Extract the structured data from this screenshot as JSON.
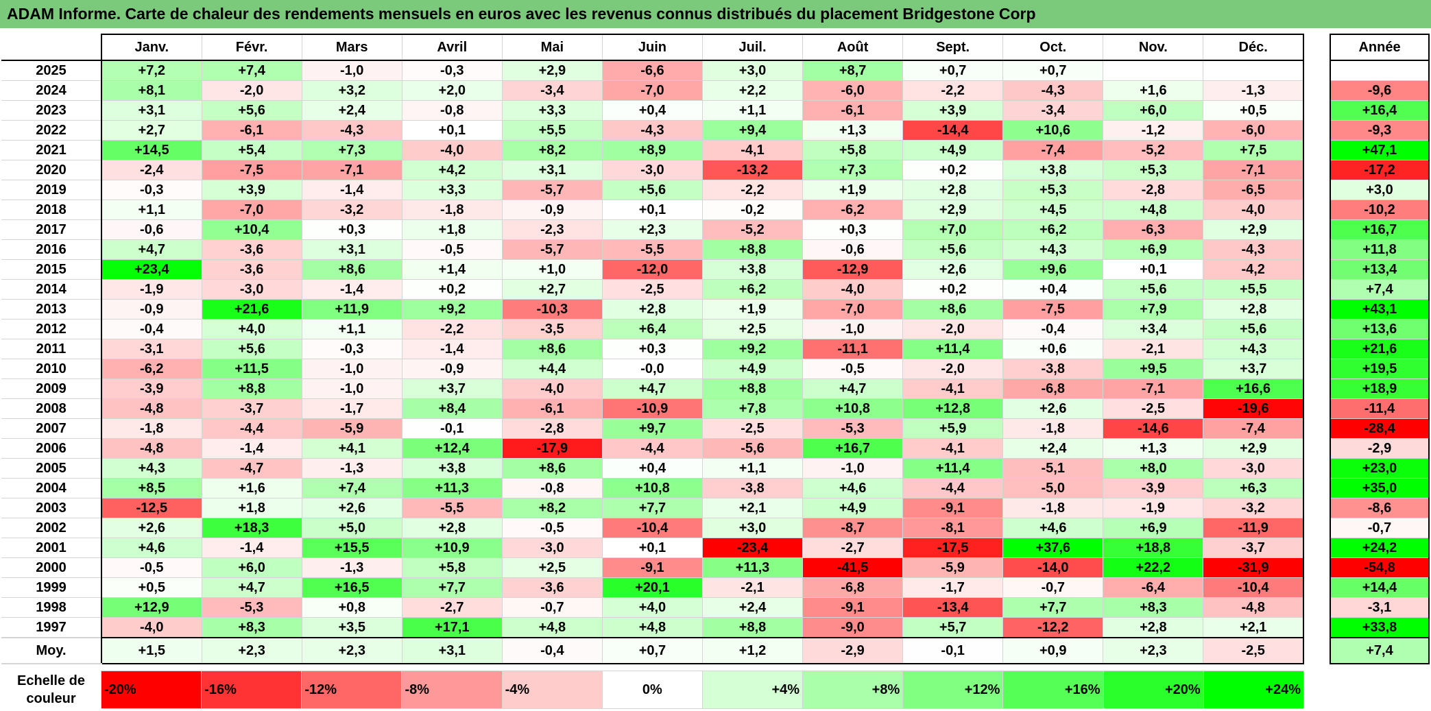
{
  "title": "ADAM Informe. Carte de chaleur des rendements mensuels en euros avec les revenus connus distribués du placement Bridgestone Corp",
  "chart_data": {
    "type": "heatmap",
    "title": "ADAM Informe. Carte de chaleur des rendements mensuels en euros avec les revenus connus distribués du placement Bridgestone Corp",
    "months": [
      "Janv.",
      "Févr.",
      "Mars",
      "Avril",
      "Mai",
      "Juin",
      "Juil.",
      "Août",
      "Sept.",
      "Oct.",
      "Nov.",
      "Déc."
    ],
    "year_header": "Année",
    "rows": [
      {
        "year": "2025",
        "values": [
          "+7,2",
          "+7,4",
          "-1,0",
          "-0,3",
          "+2,9",
          "-6,6",
          "+3,0",
          "+8,7",
          "+0,7",
          "+0,7",
          "",
          ""
        ],
        "annual": ""
      },
      {
        "year": "2024",
        "values": [
          "+8,1",
          "-2,0",
          "+3,2",
          "+2,0",
          "-3,4",
          "-7,0",
          "+2,2",
          "-6,0",
          "-2,2",
          "-4,3",
          "+1,6",
          "-1,3"
        ],
        "annual": "-9,6"
      },
      {
        "year": "2023",
        "values": [
          "+3,1",
          "+5,6",
          "+2,4",
          "-0,8",
          "+3,3",
          "+0,4",
          "+1,1",
          "-6,1",
          "+3,9",
          "-3,4",
          "+6,0",
          "+0,5"
        ],
        "annual": "+16,4"
      },
      {
        "year": "2022",
        "values": [
          "+2,7",
          "-6,1",
          "-4,3",
          "+0,1",
          "+5,5",
          "-4,3",
          "+9,4",
          "+1,3",
          "-14,4",
          "+10,6",
          "-1,2",
          "-6,0"
        ],
        "annual": "-9,3"
      },
      {
        "year": "2021",
        "values": [
          "+14,5",
          "+5,4",
          "+7,3",
          "-4,0",
          "+8,2",
          "+8,9",
          "-4,1",
          "+5,8",
          "+4,9",
          "-7,4",
          "-5,2",
          "+7,5"
        ],
        "annual": "+47,1"
      },
      {
        "year": "2020",
        "values": [
          "-2,4",
          "-7,5",
          "-7,1",
          "+4,2",
          "+3,1",
          "-3,0",
          "-13,2",
          "+7,3",
          "+0,2",
          "+3,8",
          "+5,3",
          "-7,1"
        ],
        "annual": "-17,2"
      },
      {
        "year": "2019",
        "values": [
          "-0,3",
          "+3,9",
          "-1,4",
          "+3,3",
          "-5,7",
          "+5,6",
          "-2,2",
          "+1,9",
          "+2,8",
          "+5,3",
          "-2,8",
          "-6,5"
        ],
        "annual": "+3,0"
      },
      {
        "year": "2018",
        "values": [
          "+1,1",
          "-7,0",
          "-3,2",
          "-1,8",
          "-0,9",
          "+0,1",
          "-0,2",
          "-6,2",
          "+2,9",
          "+4,5",
          "+4,8",
          "-4,0"
        ],
        "annual": "-10,2"
      },
      {
        "year": "2017",
        "values": [
          "-0,6",
          "+10,4",
          "+0,3",
          "+1,8",
          "-2,3",
          "+2,3",
          "-5,2",
          "+0,3",
          "+7,0",
          "+6,2",
          "-6,3",
          "+2,9"
        ],
        "annual": "+16,7"
      },
      {
        "year": "2016",
        "values": [
          "+4,7",
          "-3,6",
          "+3,1",
          "-0,5",
          "-5,7",
          "-5,5",
          "+8,8",
          "-0,6",
          "+5,6",
          "+4,3",
          "+6,9",
          "-4,3"
        ],
        "annual": "+11,8"
      },
      {
        "year": "2015",
        "values": [
          "+23,4",
          "-3,6",
          "+8,6",
          "+1,4",
          "+1,0",
          "-12,0",
          "+3,8",
          "-12,9",
          "+2,6",
          "+9,6",
          "+0,1",
          "-4,2"
        ],
        "annual": "+13,4"
      },
      {
        "year": "2014",
        "values": [
          "-1,9",
          "-3,0",
          "-1,4",
          "+0,2",
          "+2,7",
          "-2,5",
          "+6,2",
          "-4,0",
          "+0,2",
          "+0,4",
          "+5,6",
          "+5,5"
        ],
        "annual": "+7,4"
      },
      {
        "year": "2013",
        "values": [
          "-0,9",
          "+21,6",
          "+11,9",
          "+9,2",
          "-10,3",
          "+2,8",
          "+1,9",
          "-7,0",
          "+8,6",
          "-7,5",
          "+7,9",
          "+2,8"
        ],
        "annual": "+43,1"
      },
      {
        "year": "2012",
        "values": [
          "-0,4",
          "+4,0",
          "+1,1",
          "-2,2",
          "-3,5",
          "+6,4",
          "+2,5",
          "-1,0",
          "-2,0",
          "-0,4",
          "+3,4",
          "+5,6"
        ],
        "annual": "+13,6"
      },
      {
        "year": "2011",
        "values": [
          "-3,1",
          "+5,6",
          "-0,3",
          "-1,4",
          "+8,6",
          "+0,3",
          "+9,2",
          "-11,1",
          "+11,4",
          "+0,6",
          "-2,1",
          "+4,3"
        ],
        "annual": "+21,6"
      },
      {
        "year": "2010",
        "values": [
          "-6,2",
          "+11,5",
          "-1,0",
          "-0,9",
          "+4,4",
          "-0,0",
          "+4,9",
          "-0,5",
          "-2,0",
          "-3,8",
          "+9,5",
          "+3,7"
        ],
        "annual": "+19,5"
      },
      {
        "year": "2009",
        "values": [
          "-3,9",
          "+8,8",
          "-1,0",
          "+3,7",
          "-4,0",
          "+4,7",
          "+8,8",
          "+4,7",
          "-4,1",
          "-6,8",
          "-7,1",
          "+16,6"
        ],
        "annual": "+18,9"
      },
      {
        "year": "2008",
        "values": [
          "-4,8",
          "-3,7",
          "-1,7",
          "+8,4",
          "-6,1",
          "-10,9",
          "+7,8",
          "+10,8",
          "+12,8",
          "+2,6",
          "-2,5",
          "-19,6"
        ],
        "annual": "-11,4"
      },
      {
        "year": "2007",
        "values": [
          "-1,8",
          "-4,4",
          "-5,9",
          "-0,1",
          "-2,8",
          "+9,7",
          "-2,5",
          "-5,3",
          "+5,9",
          "-1,8",
          "-14,6",
          "-7,4"
        ],
        "annual": "-28,4"
      },
      {
        "year": "2006",
        "values": [
          "-4,8",
          "-1,4",
          "+4,1",
          "+12,4",
          "-17,9",
          "-4,4",
          "-5,6",
          "+16,7",
          "-4,1",
          "+2,4",
          "+1,3",
          "+2,9"
        ],
        "annual": "-2,9"
      },
      {
        "year": "2005",
        "values": [
          "+4,3",
          "-4,7",
          "-1,3",
          "+3,8",
          "+8,6",
          "+0,4",
          "+1,1",
          "-1,0",
          "+11,4",
          "-5,1",
          "+8,0",
          "-3,0"
        ],
        "annual": "+23,0"
      },
      {
        "year": "2004",
        "values": [
          "+8,5",
          "+1,6",
          "+7,4",
          "+11,3",
          "-0,8",
          "+10,8",
          "-3,8",
          "+4,6",
          "-4,4",
          "-5,0",
          "-3,9",
          "+6,3"
        ],
        "annual": "+35,0"
      },
      {
        "year": "2003",
        "values": [
          "-12,5",
          "+1,8",
          "+2,6",
          "-5,5",
          "+8,2",
          "+7,7",
          "+2,1",
          "+4,9",
          "-9,1",
          "-1,8",
          "-1,9",
          "-3,2"
        ],
        "annual": "-8,6"
      },
      {
        "year": "2002",
        "values": [
          "+2,6",
          "+18,3",
          "+5,0",
          "+2,8",
          "-0,5",
          "-10,4",
          "+3,0",
          "-8,7",
          "-8,1",
          "+4,6",
          "+6,9",
          "-11,9"
        ],
        "annual": "-0,7"
      },
      {
        "year": "2001",
        "values": [
          "+4,6",
          "-1,4",
          "+15,5",
          "+10,9",
          "-3,0",
          "+0,1",
          "-23,4",
          "-2,7",
          "-17,5",
          "+37,6",
          "+18,8",
          "-3,7"
        ],
        "annual": "+24,2"
      },
      {
        "year": "2000",
        "values": [
          "-0,5",
          "+6,0",
          "-1,3",
          "+5,8",
          "+2,5",
          "-9,1",
          "+11,3",
          "-41,5",
          "-5,9",
          "-14,0",
          "+22,2",
          "-31,9"
        ],
        "annual": "-54,8"
      },
      {
        "year": "1999",
        "values": [
          "+0,5",
          "+4,7",
          "+16,5",
          "+7,7",
          "-3,6",
          "+20,1",
          "-2,1",
          "-6,8",
          "-1,7",
          "-0,7",
          "-6,4",
          "-10,4"
        ],
        "annual": "+14,4"
      },
      {
        "year": "1998",
        "values": [
          "+12,9",
          "-5,3",
          "+0,8",
          "-2,7",
          "-0,7",
          "+4,0",
          "+2,4",
          "-9,1",
          "-13,4",
          "+7,7",
          "+8,3",
          "-4,8"
        ],
        "annual": "-3,1"
      },
      {
        "year": "1997",
        "values": [
          "-4,0",
          "+8,3",
          "+3,5",
          "+17,1",
          "+4,8",
          "+4,8",
          "+8,8",
          "-9,0",
          "+5,7",
          "-12,2",
          "+2,8",
          "+2,1"
        ],
        "annual": "+33,8"
      }
    ],
    "average": {
      "label": "Moy.",
      "values": [
        "+1,5",
        "+2,3",
        "+2,3",
        "+3,1",
        "-0,4",
        "+0,7",
        "+1,2",
        "-2,9",
        "-0,1",
        "+0,9",
        "+2,3",
        "-2,5"
      ],
      "annual": "+7,4"
    },
    "color_scale": {
      "label": "Echelle de couleur",
      "stops": [
        "-20%",
        "-16%",
        "-12%",
        "-8%",
        "-4%",
        "0%",
        "+4%",
        "+8%",
        "+12%",
        "+16%",
        "+20%",
        "+24%"
      ],
      "stop_values": [
        -20,
        -16,
        -12,
        -8,
        -4,
        0,
        4,
        8,
        12,
        16,
        20,
        24
      ],
      "negative_color": "#ff0000",
      "zero_color": "#ffffff",
      "positive_color": "#00ff00"
    }
  }
}
